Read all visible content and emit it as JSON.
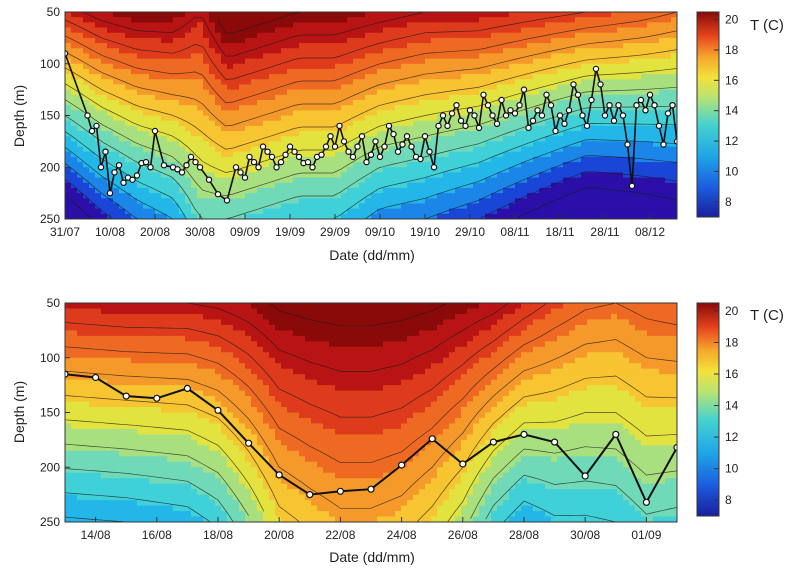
{
  "palette": [
    "#2b0fa8",
    "#1a46d8",
    "#1b86e8",
    "#22b7e8",
    "#3fd0d8",
    "#6fd9b8",
    "#a9e07f",
    "#e2e33f",
    "#f7c531",
    "#f59a2a",
    "#ee6a22",
    "#de3a1c",
    "#b81414",
    "#8a0a0a"
  ],
  "chart_data": [
    {
      "type": "heatmap",
      "title": "",
      "xlabel": "Date (dd/mm)",
      "ylabel": "Depth (m)",
      "x_ticks": [
        "31/07",
        "10/08",
        "20/08",
        "30/08",
        "09/09",
        "19/09",
        "29/09",
        "09/10",
        "19/10",
        "29/10",
        "08/11",
        "18/11",
        "28/11",
        "08/12"
      ],
      "x_range_days": [
        0,
        136
      ],
      "y_ticks": [
        "50",
        "100",
        "150",
        "200",
        "250"
      ],
      "ylim": [
        50,
        250
      ],
      "y_inverted": true,
      "colorbar_label": "T (C)",
      "colorbar_ticks": [
        "8",
        "10",
        "12",
        "14",
        "16",
        "18",
        "20"
      ],
      "colorbar_range": [
        7,
        20.5
      ],
      "field_columns_x": [
        0,
        8,
        16,
        24,
        30,
        36,
        44,
        52,
        60,
        70,
        80,
        92,
        104,
        116,
        128,
        136
      ],
      "field_surface_T": [
        18.5,
        19.5,
        20,
        20,
        19,
        21,
        20.5,
        20,
        20,
        19.5,
        19,
        19,
        18.5,
        18,
        17.5,
        17
      ],
      "field_gradient_T_per_m": [
        0.065,
        0.06,
        0.055,
        0.05,
        0.035,
        0.045,
        0.045,
        0.045,
        0.045,
        0.05,
        0.05,
        0.055,
        0.06,
        0.065,
        0.06,
        0.055
      ],
      "thermocline_depth": {
        "x": [
          0,
          5,
          6,
          7,
          8,
          9,
          10,
          11,
          12,
          13,
          14,
          15,
          16,
          17,
          18,
          19,
          20,
          22,
          24,
          25,
          26,
          27,
          28,
          29,
          30,
          32,
          34,
          36,
          38,
          39,
          40,
          41,
          42,
          43,
          44,
          45,
          46,
          47,
          48,
          49,
          50,
          51,
          52,
          53,
          54,
          55,
          56,
          57,
          58,
          59,
          60,
          61,
          62,
          63,
          64,
          65,
          66,
          67,
          68,
          69,
          70,
          71,
          72,
          73,
          74,
          75,
          76,
          77,
          78,
          79,
          80,
          81,
          82,
          83,
          84,
          85,
          86,
          87,
          88,
          89,
          90,
          91,
          92,
          93,
          94,
          95,
          96,
          97,
          98,
          99,
          100,
          101,
          102,
          103,
          104,
          105,
          106,
          107,
          108,
          109,
          110,
          111,
          112,
          113,
          114,
          115,
          116,
          117,
          118,
          119,
          120,
          121,
          122,
          123,
          124,
          125,
          126,
          127,
          128,
          129,
          130,
          131,
          132,
          133,
          134,
          135,
          136
        ],
        "y": [
          90,
          150,
          165,
          160,
          200,
          185,
          225,
          205,
          198,
          215,
          210,
          212,
          208,
          196,
          195,
          200,
          165,
          198,
          200,
          202,
          205,
          198,
          190,
          195,
          200,
          212,
          226,
          232,
          200,
          205,
          210,
          190,
          195,
          200,
          180,
          185,
          190,
          200,
          195,
          188,
          180,
          185,
          190,
          196,
          195,
          200,
          190,
          188,
          180,
          170,
          180,
          160,
          175,
          185,
          190,
          180,
          170,
          195,
          188,
          175,
          190,
          180,
          160,
          168,
          185,
          178,
          170,
          180,
          190,
          192,
          170,
          185,
          200,
          160,
          150,
          160,
          148,
          140,
          155,
          160,
          145,
          150,
          162,
          130,
          140,
          150,
          158,
          135,
          150,
          145,
          148,
          140,
          125,
          162,
          155,
          145,
          150,
          130,
          140,
          165,
          150,
          158,
          145,
          120,
          130,
          150,
          160,
          135,
          105,
          120,
          150,
          140,
          155,
          140,
          150,
          178,
          218,
          140,
          135,
          145,
          130,
          140,
          160,
          178,
          148,
          140,
          175
        ]
      }
    },
    {
      "type": "heatmap",
      "title": "",
      "xlabel": "Date (dd/mm)",
      "ylabel": "Depth (m)",
      "x_ticks": [
        "14/08",
        "16/08",
        "18/08",
        "20/08",
        "22/08",
        "24/08",
        "26/08",
        "28/08",
        "30/08",
        "01/09"
      ],
      "x_range_days": [
        0,
        20
      ],
      "y_ticks": [
        "50",
        "100",
        "150",
        "200",
        "250"
      ],
      "ylim": [
        50,
        250
      ],
      "y_inverted": true,
      "colorbar_label": "T (C)",
      "colorbar_ticks": [
        "8",
        "10",
        "12",
        "14",
        "16",
        "18",
        "20"
      ],
      "colorbar_range": [
        7,
        20.5
      ],
      "field_columns_x": [
        0,
        2,
        4,
        5,
        6,
        7,
        8,
        9,
        10,
        11,
        12,
        13,
        14,
        15,
        16,
        17,
        18,
        19,
        20
      ],
      "field_surface_T": [
        18.8,
        19,
        19,
        19.2,
        19.6,
        20.2,
        20.4,
        20.5,
        20.5,
        20.4,
        20.2,
        19.8,
        19.4,
        18.6,
        17.8,
        17.2,
        17,
        17.4,
        17.6
      ],
      "field_gradient_T_per_m": [
        0.045,
        0.045,
        0.043,
        0.04,
        0.034,
        0.028,
        0.026,
        0.024,
        0.024,
        0.025,
        0.028,
        0.032,
        0.04,
        0.042,
        0.035,
        0.032,
        0.03,
        0.028,
        0.03
      ],
      "thermocline_depth": {
        "x": [
          0,
          1,
          2,
          3,
          4,
          5,
          6,
          7,
          8,
          9,
          10,
          11,
          12,
          13,
          14,
          15,
          16,
          17,
          18,
          19,
          20
        ],
        "y": [
          115,
          118,
          135,
          137,
          128,
          148,
          178,
          207,
          225,
          222,
          220,
          198,
          174,
          197,
          177,
          170,
          177,
          208,
          170,
          232,
          182
        ]
      }
    }
  ]
}
